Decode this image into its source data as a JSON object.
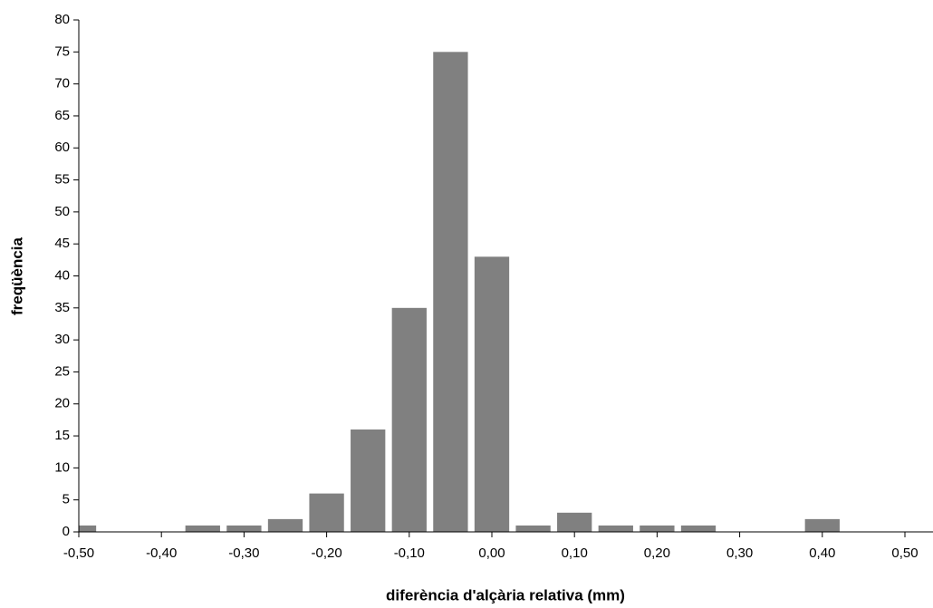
{
  "chart_data": {
    "type": "bar",
    "xlabel": "diferència d'alçària relativa (mm)",
    "ylabel": "freqüència",
    "x": [
      -0.5,
      -0.45,
      -0.4,
      -0.35,
      -0.3,
      -0.25,
      -0.2,
      -0.15,
      -0.1,
      -0.05,
      0.0,
      0.05,
      0.1,
      0.15,
      0.2,
      0.25,
      0.3,
      0.35,
      0.4,
      0.45,
      0.5
    ],
    "values": [
      1,
      0,
      0,
      1,
      1,
      2,
      6,
      16,
      35,
      75,
      43,
      1,
      3,
      1,
      1,
      1,
      0,
      0,
      2,
      0,
      0
    ],
    "color": "#808080",
    "xlim": [
      -0.5,
      0.534
    ],
    "xticks": [
      {
        "value": -0.5,
        "label": "-0,50"
      },
      {
        "value": -0.4,
        "label": "-0,40"
      },
      {
        "value": -0.3,
        "label": "-0,30"
      },
      {
        "value": -0.2,
        "label": "-0,20"
      },
      {
        "value": -0.1,
        "label": "-0,10"
      },
      {
        "value": 0.0,
        "label": "0,00"
      },
      {
        "value": 0.1,
        "label": "0,10"
      },
      {
        "value": 0.2,
        "label": "0,20"
      },
      {
        "value": 0.3,
        "label": "0,30"
      },
      {
        "value": 0.4,
        "label": "0,40"
      },
      {
        "value": 0.5,
        "label": "0,50"
      }
    ],
    "ylim": [
      0,
      80
    ],
    "yticks": [
      0,
      5,
      10,
      15,
      20,
      25,
      30,
      35,
      40,
      45,
      50,
      55,
      60,
      65,
      70,
      75,
      80
    ],
    "grid": false
  }
}
